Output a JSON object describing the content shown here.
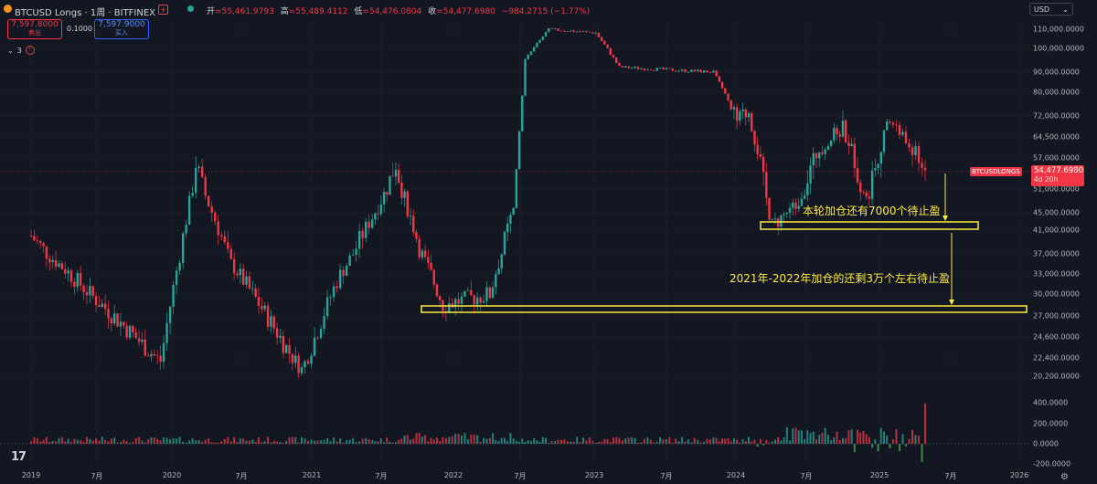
{
  "header": {
    "symbol": "BTCUSD Longs · 1周 · BITFINEX",
    "ohlc": [
      {
        "k": "开",
        "v": "=55,461.9793"
      },
      {
        "k": "高",
        "v": "=55,489.4112"
      },
      {
        "k": "低",
        "v": "=54,476.0804"
      },
      {
        "k": "收",
        "v": "=54,477.6980"
      },
      {
        "k": "",
        "v": "−984.2715 (−1.77%)"
      }
    ]
  },
  "trade": {
    "sell_price": "7,597.8000",
    "sell_label": "卖出",
    "spread": "0.1000",
    "buy_price": "7,597.9000",
    "buy_label": "买入"
  },
  "indicators": {
    "count": "3"
  },
  "currency": "USD",
  "price_axis": [
    "110,000.0000",
    "100,000.0000",
    "90,000.0000",
    "80,000.0000",
    "72,000.0000",
    "64,500.0000",
    "57,000.0000",
    "51,000.0000",
    "45,000.0000",
    "41,000.0000",
    "37,000.0000",
    "33,000.0000",
    "30,000.0000",
    "27,000.0000",
    "24,600.0000",
    "22,400.0000",
    "20,200.0000"
  ],
  "volume_axis": [
    "400.0000",
    "200.0000",
    "0.0000",
    "-200.0000"
  ],
  "time_axis": [
    "2019",
    "7月",
    "2020",
    "7月",
    "2021",
    "7月",
    "2022",
    "7月",
    "2023",
    "7月",
    "2024",
    "7月",
    "2025",
    "7月",
    "2026"
  ],
  "last_price": {
    "symbol": "BTCUSDLONGS",
    "value": "54,477.6980",
    "countdown": "4d 20h"
  },
  "annotations": {
    "note1": "本轮加仓还有7000个待止盈",
    "note2": "2021年-2022年加仓的还剩3万个左右待止盈"
  },
  "colors": {
    "up": "#26a69a",
    "down": "#f23645",
    "annotation": "#ffeb3b",
    "background": "#131722"
  },
  "chart_data": {
    "type": "candlestick",
    "title": "BTCUSD Longs · 1周 · BITFINEX",
    "x_start": "2019",
    "x_end": "2025-06",
    "y_scale": "log",
    "ylim": [
      19000,
      115000
    ],
    "approx_close_path": [
      [
        "2019-01",
        40000
      ],
      [
        "2019-06",
        30000
      ],
      [
        "2019-12",
        22000
      ],
      [
        "2020-03",
        56000
      ],
      [
        "2020-06",
        35000
      ],
      [
        "2020-12",
        21000
      ],
      [
        "2021-03",
        32000
      ],
      [
        "2021-06",
        44000
      ],
      [
        "2021-08",
        56000
      ],
      [
        "2021-10",
        38000
      ],
      [
        "2021-12",
        28500
      ],
      [
        "2022-04",
        30000
      ],
      [
        "2022-06",
        46000
      ],
      [
        "2022-07",
        95000
      ],
      [
        "2022-09",
        110000
      ],
      [
        "2023-01",
        108000
      ],
      [
        "2023-03",
        92000
      ],
      [
        "2023-11",
        90000
      ],
      [
        "2024-01",
        70000
      ],
      [
        "2024-02",
        74000
      ],
      [
        "2024-04",
        42000
      ],
      [
        "2024-06",
        47000
      ],
      [
        "2024-08",
        60000
      ],
      [
        "2024-10",
        68000
      ],
      [
        "2024-12",
        48000
      ],
      [
        "2025-02",
        71000
      ],
      [
        "2025-05",
        54477.698
      ]
    ],
    "volume_range": [
      -200,
      400
    ]
  }
}
